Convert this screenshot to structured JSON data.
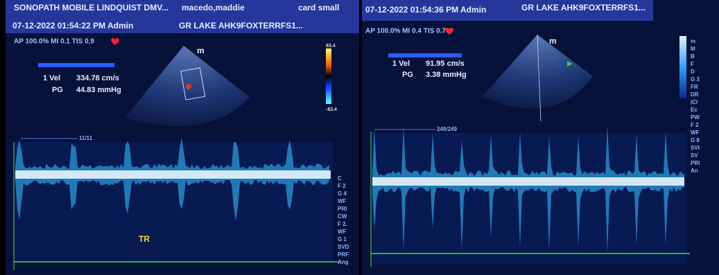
{
  "panels": [
    {
      "header": {
        "line1": [
          "SONOPATH MOBILE LINDQUIST DMV...",
          "macedo,maddie",
          "card small"
        ],
        "line2": [
          "07-12-2022 01:54:22 PM Admin",
          "GR LAKE AHK9FOXTERRFS1..."
        ]
      },
      "status": "AP 100.0% MI 0.1 TIS 0.9",
      "measurement": {
        "rows": [
          {
            "label": "1 Vel",
            "value": "334.78 cm/s"
          },
          {
            "label": "PG",
            "value": "44.83 mmHg"
          }
        ]
      },
      "probe_marker": "m",
      "color_scale": {
        "top": "83.4",
        "bottom": "-83.4"
      },
      "sweep_label": "11/11",
      "annotation": "TR",
      "side_labels": [
        "C",
        "F 2",
        "G 4",
        "WF",
        "PRI",
        "CW",
        "F 2.",
        "WF",
        "G 1",
        "SVD",
        "PRF",
        "Ang"
      ]
    },
    {
      "header": {
        "line1": [
          "07-12-2022 01:54:36 PM Admin",
          "GR LAKE AHK9FOXTERRFS1..."
        ]
      },
      "status": "AP 100.0% MI 0.4 TIS 0.7",
      "measurement": {
        "rows": [
          {
            "label": "1 Vel",
            "value": "91.95 cm/s"
          },
          {
            "label": "PG",
            "value": "3.38 mmHg"
          }
        ]
      },
      "probe_marker": "m",
      "sweep_label": "249/249",
      "side_labels": [
        "m",
        "M",
        "B",
        "F",
        "D",
        "G 3",
        "FR",
        "DR",
        "iCl",
        "Ec",
        "PW",
        "F 2",
        "WF",
        "G 8",
        "SVI",
        "SV",
        "PRI",
        "An"
      ]
    }
  ]
}
